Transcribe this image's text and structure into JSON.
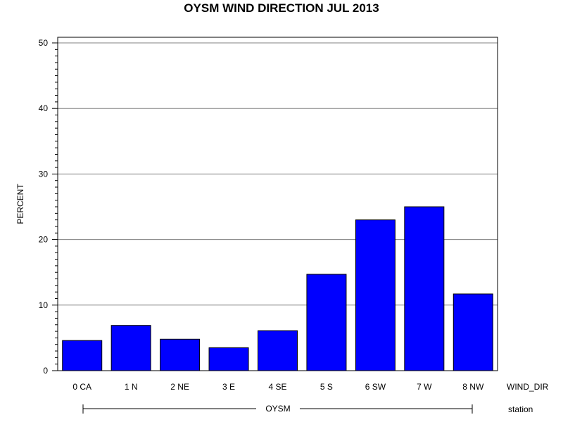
{
  "chart_data": {
    "type": "bar",
    "title": "OYSM WIND DIRECTION JUL 2013",
    "ylabel": "PERCENT",
    "xlabel": "WIND_DIR",
    "group_axis_label": "station",
    "group": "OYSM",
    "categories": [
      "0 CA",
      "1 N",
      "2 NE",
      "3 E",
      "4 SE",
      "5 S",
      "6 SW",
      "7 W",
      "8 NW"
    ],
    "values": [
      4.6,
      6.9,
      4.8,
      3.5,
      6.1,
      14.7,
      23.0,
      25.0,
      11.7
    ],
    "ylim": [
      0,
      50
    ],
    "yticks": [
      "0",
      "10",
      "20",
      "30",
      "40",
      "50"
    ],
    "grid": true,
    "bar_color": "#0000ff"
  }
}
